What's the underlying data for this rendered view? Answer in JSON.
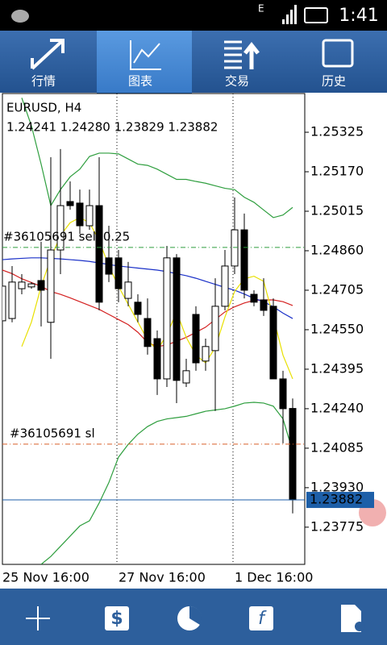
{
  "status": {
    "network": "E",
    "time": "1:41"
  },
  "tabs": [
    "行情",
    "图表",
    "交易",
    "历史"
  ],
  "chart_data": {
    "type": "candlestick",
    "title": "EURUSD, H4",
    "ohlc_text": "1.24241 1.24280 1.23829 1.23882",
    "categories": [
      "25 Nov 16:00",
      null,
      null,
      null,
      null,
      null,
      null,
      null,
      null,
      null,
      null,
      null,
      "27 Nov 16:00",
      null,
      null,
      null,
      null,
      null,
      null,
      null,
      null,
      null,
      null,
      null,
      "1 Dec 16:00",
      null,
      null,
      null,
      null,
      null,
      null
    ],
    "ohlc": [
      [
        1.24585,
        1.24768,
        1.24357,
        1.24721
      ],
      [
        1.24594,
        1.248,
        1.24579,
        1.24737
      ],
      [
        1.24711,
        1.24768,
        1.24689,
        1.24737
      ],
      [
        1.24718,
        1.24737,
        1.24711,
        1.2473
      ],
      [
        1.24743,
        1.24895,
        1.24563,
        1.24705
      ],
      [
        1.24579,
        1.25227,
        1.24436,
        1.24863
      ],
      [
        1.24863,
        1.25259,
        1.24768,
        1.25037
      ],
      [
        1.25053,
        1.25132,
        1.25021,
        1.25037
      ],
      [
        1.25047,
        1.251,
        1.24926,
        1.24958
      ],
      [
        1.24958,
        1.251,
        1.24942,
        1.25037
      ],
      [
        1.25037,
        1.25227,
        1.24626,
        1.24658
      ],
      [
        1.24832,
        1.24958,
        1.24737,
        1.24768
      ],
      [
        1.24832,
        1.24863,
        1.24658,
        1.24711
      ],
      [
        1.24673,
        1.24816,
        1.24642,
        1.24737
      ],
      [
        1.24658,
        1.24689,
        1.24579,
        1.2461
      ],
      [
        1.24594,
        1.24673,
        1.24452,
        1.24484
      ],
      [
        1.24515,
        1.24547,
        1.24294,
        1.24357
      ],
      [
        1.24357,
        1.24879,
        1.24325,
        1.24832
      ],
      [
        1.24832,
        1.24847,
        1.24262,
        1.24351
      ],
      [
        1.24341,
        1.24436,
        1.24325,
        1.24389
      ],
      [
        1.2461,
        1.24642,
        1.24389,
        1.2442
      ],
      [
        1.24427,
        1.24515,
        1.24389,
        1.24484
      ],
      [
        1.24468,
        1.24752,
        1.24231,
        1.24642
      ],
      [
        1.24642,
        1.24863,
        1.24626,
        1.248
      ],
      [
        1.248,
        1.25069,
        1.24768,
        1.24942
      ],
      [
        1.24942,
        1.25006,
        1.24673,
        1.24705
      ],
      [
        1.24689,
        1.24705,
        1.24642,
        1.24658
      ],
      [
        1.24667,
        1.24752,
        1.24604,
        1.24626
      ],
      [
        1.24642,
        1.24673,
        1.24357,
        1.24357
      ],
      [
        1.24357,
        1.24389,
        1.24104,
        1.2424
      ],
      [
        1.24241,
        1.2428,
        1.23829,
        1.23882
      ]
    ],
    "up_color": "#ffffff",
    "down_color": "#000000",
    "series": [
      {
        "color": "#2e9e3e",
        "values": [
          null,
          null,
          1.2546,
          1.2535,
          1.252,
          1.25037,
          1.251,
          1.2515,
          1.2518,
          1.2523,
          1.25243,
          1.25243,
          1.2524,
          1.2522,
          1.252,
          1.25195,
          1.2518,
          1.2516,
          1.2514,
          1.2514,
          1.25132,
          1.25125,
          1.25115,
          1.25105,
          1.251,
          1.2507,
          1.2505,
          1.2502,
          1.2499,
          1.25,
          1.2503
        ]
      },
      {
        "color": "#2e9e3e",
        "values": [
          null,
          null,
          null,
          null,
          1.23629,
          1.2366,
          1.237,
          1.2374,
          1.2378,
          1.238,
          1.2387,
          1.2395,
          1.2405,
          1.241,
          1.2414,
          1.2417,
          1.2419,
          1.242,
          1.24205,
          1.2421,
          1.2422,
          1.2423,
          1.24235,
          1.2424,
          1.2425,
          1.24262,
          1.24265,
          1.24262,
          1.2425,
          1.242,
          1.24073
        ]
      },
      {
        "color": "#d42020",
        "values": [
          1.24784,
          1.2477,
          1.2475,
          1.24735,
          1.2472,
          1.247,
          1.24689,
          1.24675,
          1.2466,
          1.24645,
          1.2463,
          1.2461,
          1.2459,
          1.2457,
          1.2454,
          1.245,
          1.24484,
          1.2449,
          1.24505,
          1.2452,
          1.2454,
          1.2456,
          1.2459,
          1.2462,
          1.2464,
          1.24655,
          1.24665,
          1.24667,
          1.24667,
          1.2466,
          1.24645
        ]
      },
      {
        "color": "#1a30c8",
        "values": [
          1.24825,
          1.24828,
          1.2483,
          1.24832,
          1.24832,
          1.2483,
          1.24828,
          1.24825,
          1.24822,
          1.24818,
          1.24812,
          1.24806,
          1.248,
          1.24796,
          1.24792,
          1.24788,
          1.24784,
          1.24778,
          1.2477,
          1.24762,
          1.24752,
          1.2474,
          1.24728,
          1.24716,
          1.24705,
          1.2469,
          1.24673,
          1.2466,
          1.2464,
          1.24615,
          1.24594
        ]
      },
      {
        "color": "#e8e000",
        "values": [
          null,
          null,
          1.24484,
          1.2458,
          1.2472,
          1.2483,
          1.2492,
          1.2497,
          1.2499,
          1.2497,
          1.249,
          1.248,
          1.2472,
          1.2465,
          1.2458,
          1.2451,
          1.2447,
          1.2453,
          1.2462,
          1.2452,
          1.2445,
          1.2442,
          1.2448,
          1.246,
          1.247,
          1.2475,
          1.2476,
          1.2474,
          1.246,
          1.2445,
          1.24357
        ]
      }
    ],
    "ylim": [
      1.23629,
      1.25477
    ],
    "yticks": [
      1.25325,
      {
        "value": 1.2517,
        "label": "1.25170"
      },
      1.25015,
      {
        "value": 1.2486,
        "label": "1.24860"
      },
      1.24705,
      {
        "value": 1.2455,
        "label": "1.24550"
      },
      1.24395,
      {
        "value": 1.2424,
        "label": "1.24240"
      },
      1.24085,
      {
        "value": 1.2393,
        "label": "1.23930"
      },
      1.23775
    ],
    "order_lines": [
      {
        "label": "#36105691 sell 0.25",
        "value": 1.24873,
        "color": "#2e9e3e"
      },
      {
        "label": "#36105691 sl",
        "value": 1.24101,
        "color": "#d9602a"
      }
    ],
    "bid": {
      "value": 1.23882,
      "color": "#1d5fa8"
    }
  }
}
